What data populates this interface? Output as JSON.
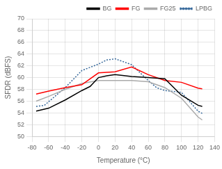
{
  "chart_data": {
    "type": "line",
    "xlabel": "Temperature (°C)",
    "ylabel": "SFDR (dBFS)",
    "xlim": [
      -80,
      140
    ],
    "ylim": [
      50,
      70
    ],
    "xticks": [
      -80,
      -60,
      -40,
      -20,
      0,
      20,
      40,
      60,
      80,
      100,
      120,
      140
    ],
    "yticks": [
      50,
      52,
      54,
      56,
      58,
      60,
      62,
      64,
      66,
      68,
      70
    ],
    "grid": true,
    "legend": "upper right",
    "series": [
      {
        "name": "BG",
        "color": "#000000",
        "line_style": "solid",
        "x": [
          -75,
          -60,
          -40,
          -20,
          -10,
          0,
          10,
          20,
          40,
          60,
          80,
          100,
          120,
          125
        ],
        "values": [
          54.3,
          54.8,
          56.2,
          57.8,
          58.5,
          60.0,
          60.3,
          60.5,
          60.2,
          60.0,
          59.8,
          57.0,
          55.3,
          55.1
        ]
      },
      {
        "name": "FG",
        "color": "#ff0000",
        "line_style": "solid",
        "x": [
          -75,
          -60,
          -40,
          -20,
          0,
          20,
          40,
          60,
          80,
          100,
          120,
          125
        ],
        "values": [
          57.2,
          57.7,
          58.3,
          58.8,
          60.8,
          61.0,
          61.8,
          60.5,
          59.5,
          59.2,
          58.2,
          58.1
        ]
      },
      {
        "name": "FG25",
        "color": "#aaaaaa",
        "line_style": "solid",
        "x": [
          -75,
          -60,
          -40,
          -20,
          0,
          20,
          40,
          60,
          80,
          100,
          120,
          125
        ],
        "values": [
          56.0,
          56.8,
          58.0,
          59.0,
          59.5,
          59.5,
          59.5,
          59.3,
          58.3,
          56.5,
          53.3,
          52.8
        ]
      },
      {
        "name": "LPBG",
        "color": "#336699",
        "line_style": "dotted",
        "x": [
          -75,
          -65,
          -55,
          -40,
          -20,
          0,
          10,
          20,
          40,
          60,
          70,
          80,
          100,
          120,
          125
        ],
        "values": [
          55.1,
          55.3,
          56.5,
          58.3,
          61.2,
          62.3,
          63.0,
          63.2,
          62.2,
          59.5,
          58.3,
          57.8,
          57.5,
          54.3,
          53.9
        ]
      }
    ]
  }
}
